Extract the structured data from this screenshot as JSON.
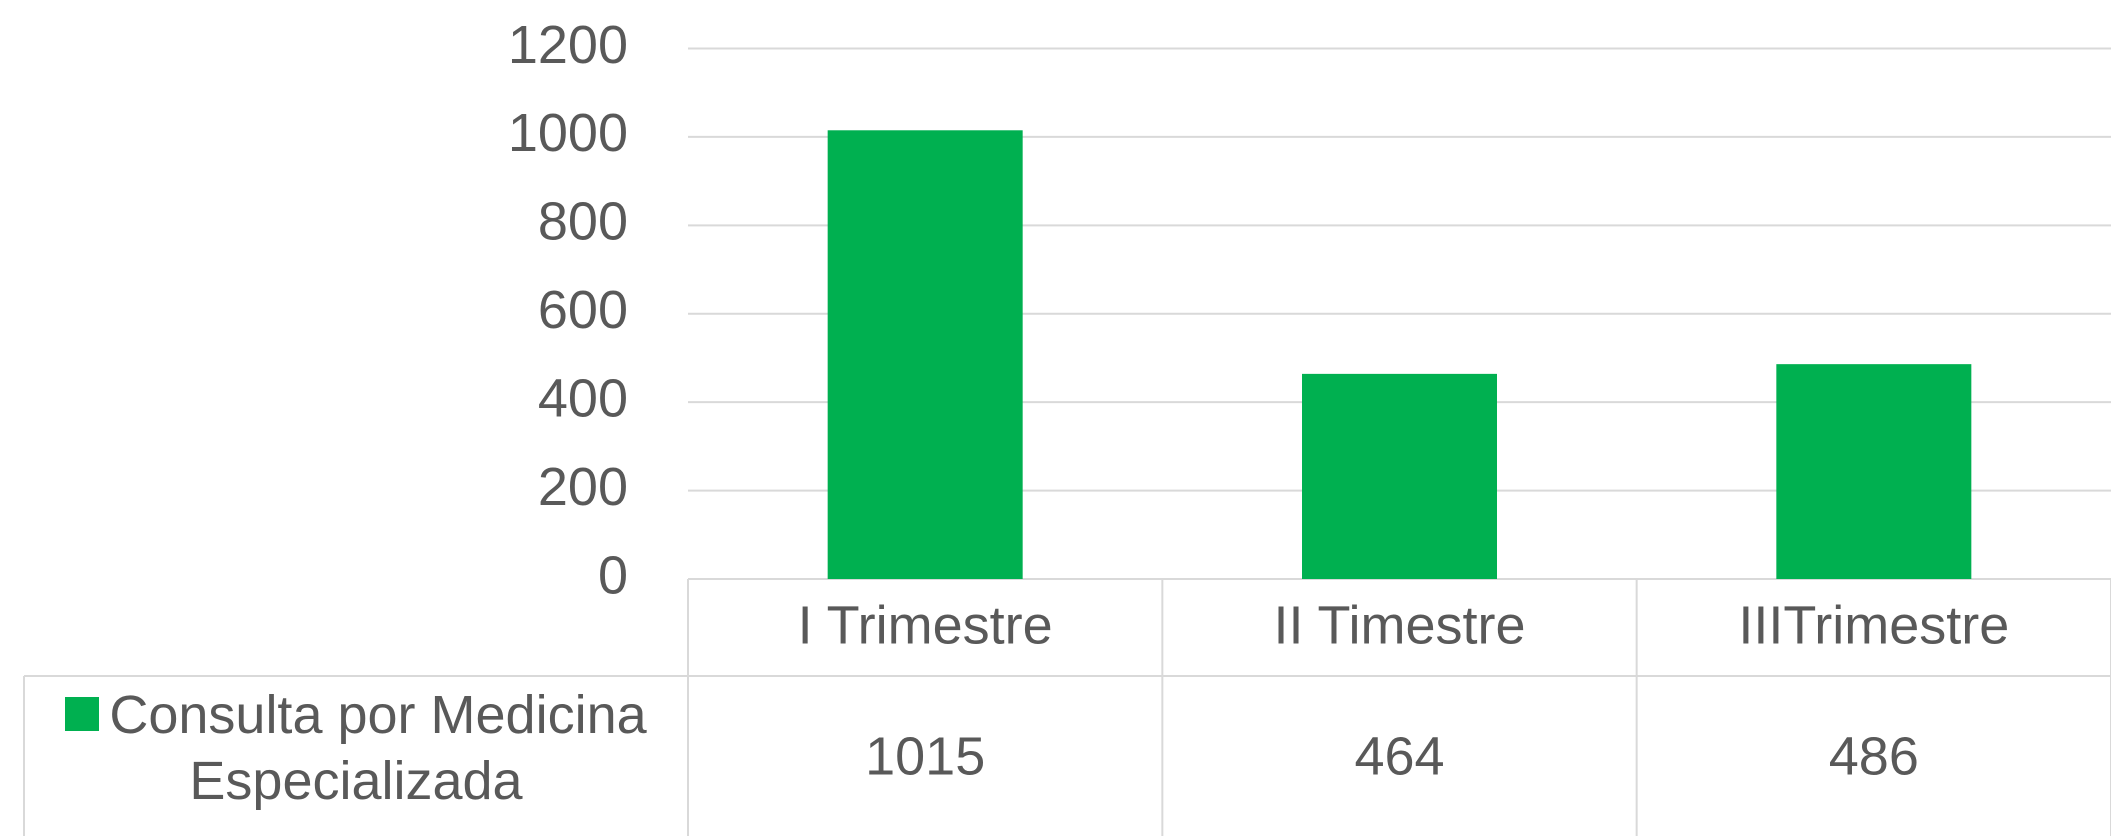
{
  "chart_data": {
    "type": "bar",
    "categories": [
      "I Trimestre",
      "II Timestre",
      "IIITrimestre"
    ],
    "series": [
      {
        "name": "Consulta por Medicina Especializada",
        "color": "#00b050",
        "values": [
          1015,
          464,
          486
        ]
      }
    ],
    "ylim": [
      0,
      1200
    ],
    "yticks": [
      0,
      200,
      400,
      600,
      800,
      1000,
      1200
    ],
    "grid": true,
    "data_table": true
  }
}
